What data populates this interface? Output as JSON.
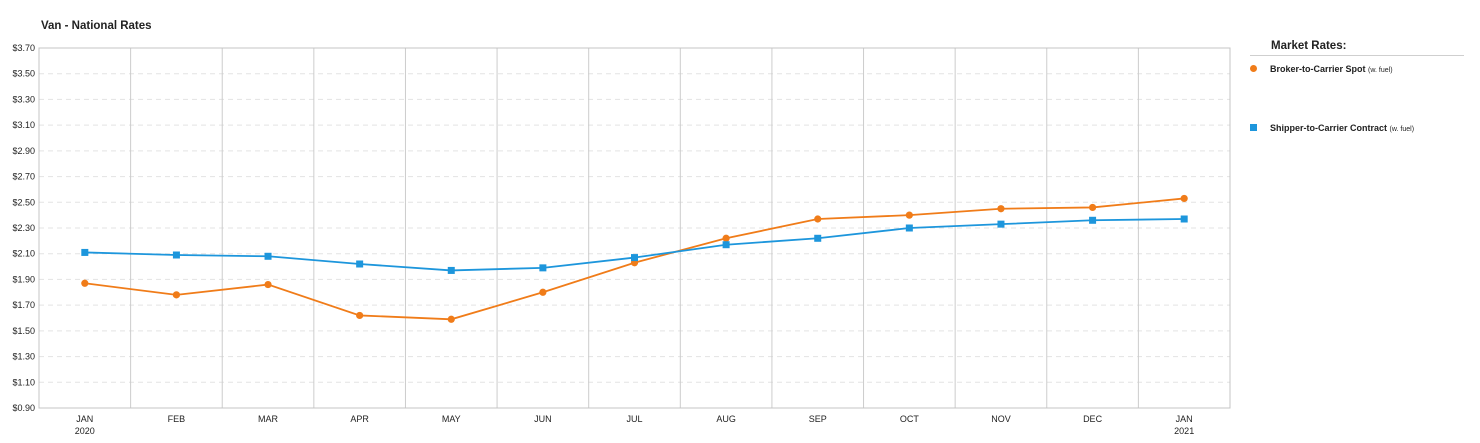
{
  "title": "Van - National Rates",
  "legend": {
    "title": "Market Rates:",
    "items": [
      {
        "label": "Broker-to-Carrier Spot",
        "sub": "(w. fuel)",
        "color": "#f07c19",
        "marker": "circle"
      },
      {
        "label": "Shipper-to-Carrier Contract",
        "sub": "(w. fuel)",
        "color": "#1d96dc",
        "marker": "square"
      }
    ]
  },
  "chart_data": {
    "type": "line",
    "categories": [
      "JAN",
      "FEB",
      "MAR",
      "APR",
      "MAY",
      "JUN",
      "JUL",
      "AUG",
      "SEP",
      "OCT",
      "NOV",
      "DEC",
      "JAN"
    ],
    "category_sublabels": [
      "2020",
      "",
      "",
      "",
      "",
      "",
      "",
      "",
      "",
      "",
      "",
      "",
      "2021"
    ],
    "y_ticks": [
      "$0.90",
      "$1.10",
      "$1.30",
      "$1.50",
      "$1.70",
      "$1.90",
      "$2.10",
      "$2.30",
      "$2.50",
      "$2.70",
      "$2.90",
      "$3.10",
      "$3.30",
      "$3.50",
      "$3.70"
    ],
    "ylim": [
      0.9,
      3.7
    ],
    "grid": {
      "horizontal": "dashed",
      "vertical": "solid"
    },
    "legend_position": "right",
    "series": [
      {
        "name": "Broker-to-Carrier Spot (w. fuel)",
        "color": "#f07c19",
        "marker": "circle",
        "values": [
          1.87,
          1.78,
          1.86,
          1.62,
          1.59,
          1.8,
          2.03,
          2.22,
          2.37,
          2.4,
          2.45,
          2.46,
          2.53
        ]
      },
      {
        "name": "Shipper-to-Carrier Contract (w. fuel)",
        "color": "#1d96dc",
        "marker": "square",
        "values": [
          2.11,
          2.09,
          2.08,
          2.02,
          1.97,
          1.99,
          2.07,
          2.17,
          2.22,
          2.3,
          2.33,
          2.36,
          2.37
        ]
      }
    ]
  }
}
